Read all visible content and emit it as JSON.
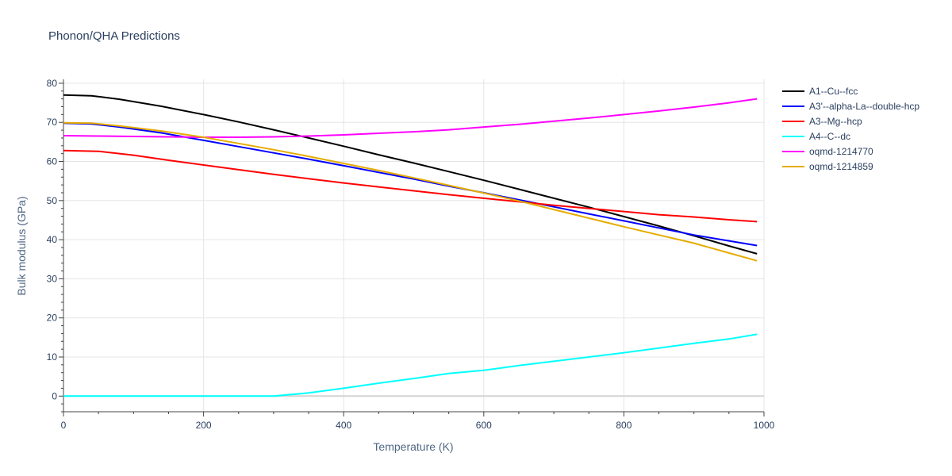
{
  "chart_data": {
    "type": "line",
    "title": "Phonon/QHA Predictions",
    "xlabel": "Temperature (K)",
    "ylabel": "Bulk modulus (GPa)",
    "xlim": [
      0,
      1000
    ],
    "ylim": [
      -4,
      81
    ],
    "xticks": [
      0,
      200,
      400,
      600,
      800,
      1000
    ],
    "yticks": [
      0,
      10,
      20,
      30,
      40,
      50,
      60,
      70,
      80
    ],
    "grid": true,
    "legend_position": "top-right",
    "series": [
      {
        "name": "A1--Cu--fcc",
        "color": "#000000",
        "x": [
          0,
          40,
          80,
          140,
          200,
          250,
          300,
          350,
          400,
          450,
          500,
          550,
          600,
          650,
          700,
          750,
          800,
          850,
          900,
          950,
          990
        ],
        "y": [
          77,
          76.8,
          75.9,
          74.1,
          72,
          70.1,
          68.1,
          66,
          63.9,
          61.7,
          59.6,
          57.4,
          55.2,
          52.9,
          50.6,
          48.3,
          45.9,
          43.5,
          41,
          38.4,
          36.4
        ]
      },
      {
        "name": "A3'--alpha-La--double-hcp",
        "color": "#0000ff",
        "x": [
          0,
          40,
          80,
          140,
          200,
          250,
          300,
          350,
          400,
          450,
          500,
          550,
          600,
          650,
          700,
          750,
          800,
          850,
          900,
          950,
          990
        ],
        "y": [
          69.8,
          69.6,
          68.8,
          67.3,
          65.4,
          63.8,
          62.2,
          60.6,
          58.9,
          57.2,
          55.5,
          53.7,
          52,
          50.2,
          48.4,
          46.6,
          44.8,
          43,
          41.2,
          39.7,
          38.5
        ]
      },
      {
        "name": "A3--Mg--hcp",
        "color": "#ff0000",
        "x": [
          0,
          50,
          100,
          150,
          200,
          250,
          300,
          350,
          400,
          450,
          500,
          550,
          600,
          650,
          700,
          750,
          800,
          850,
          900,
          950,
          990
        ],
        "y": [
          62.8,
          62.6,
          61.6,
          60.3,
          59.1,
          57.9,
          56.7,
          55.6,
          54.5,
          53.5,
          52.5,
          51.5,
          50.6,
          49.7,
          48.8,
          48,
          47.2,
          46.4,
          45.8,
          45.1,
          44.6
        ]
      },
      {
        "name": "A4--C--dc",
        "color": "#00ffff",
        "x": [
          0,
          100,
          200,
          300,
          350,
          400,
          450,
          500,
          550,
          600,
          650,
          700,
          750,
          800,
          850,
          900,
          950,
          990
        ],
        "y": [
          0,
          0,
          0,
          0,
          0.8,
          2,
          3.3,
          4.5,
          5.8,
          6.6,
          7.8,
          8.9,
          10,
          11.1,
          12.3,
          13.5,
          14.6,
          15.8
        ]
      },
      {
        "name": "oqmd-1214770",
        "color": "#ff00ff",
        "x": [
          0,
          50,
          100,
          150,
          200,
          250,
          300,
          350,
          400,
          450,
          500,
          550,
          600,
          650,
          700,
          750,
          800,
          850,
          900,
          950,
          990
        ],
        "y": [
          66.6,
          66.5,
          66.4,
          66.3,
          66.2,
          66.2,
          66.3,
          66.5,
          66.8,
          67.2,
          67.6,
          68.1,
          68.8,
          69.5,
          70.3,
          71.1,
          72,
          72.9,
          73.9,
          75,
          76
        ]
      },
      {
        "name": "oqmd-1214859",
        "color": "#e6ac00",
        "x": [
          0,
          40,
          80,
          140,
          200,
          250,
          300,
          350,
          400,
          450,
          500,
          550,
          600,
          650,
          700,
          750,
          800,
          850,
          900,
          950,
          990
        ],
        "y": [
          69.9,
          69.8,
          69.1,
          67.8,
          66.2,
          64.6,
          63,
          61.3,
          59.5,
          57.7,
          55.8,
          53.9,
          51.9,
          49.9,
          47.7,
          45.5,
          43.3,
          41.2,
          39.1,
          36.6,
          34.6
        ]
      }
    ]
  }
}
